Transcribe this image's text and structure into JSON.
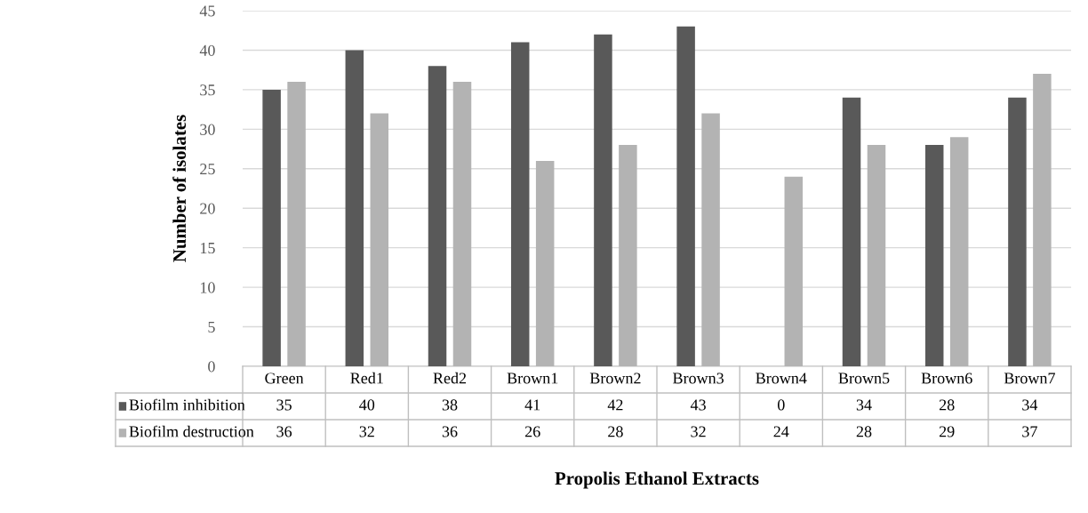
{
  "chart_data": {
    "type": "bar",
    "xlabel": "Propolis Ethanol Extracts",
    "ylabel": "Number of isolates",
    "categories": [
      "Green",
      "Red1",
      "Red2",
      "Brown1",
      "Brown2",
      "Brown3",
      "Brown4",
      "Brown5",
      "Brown6",
      "Brown7"
    ],
    "series": [
      {
        "name": "Biofilm inhibition",
        "color": "#595959",
        "values": [
          35,
          40,
          38,
          41,
          42,
          43,
          0,
          34,
          28,
          34
        ]
      },
      {
        "name": "Biofilm destruction",
        "color": "#b3b3b3",
        "values": [
          36,
          32,
          36,
          26,
          28,
          32,
          24,
          28,
          29,
          37
        ]
      }
    ],
    "ylim": [
      0,
      45
    ],
    "yticks": [
      0,
      5,
      10,
      15,
      20,
      25,
      30,
      35,
      40,
      45
    ],
    "grid": "y",
    "legend": "bottom",
    "data_labels": true
  }
}
